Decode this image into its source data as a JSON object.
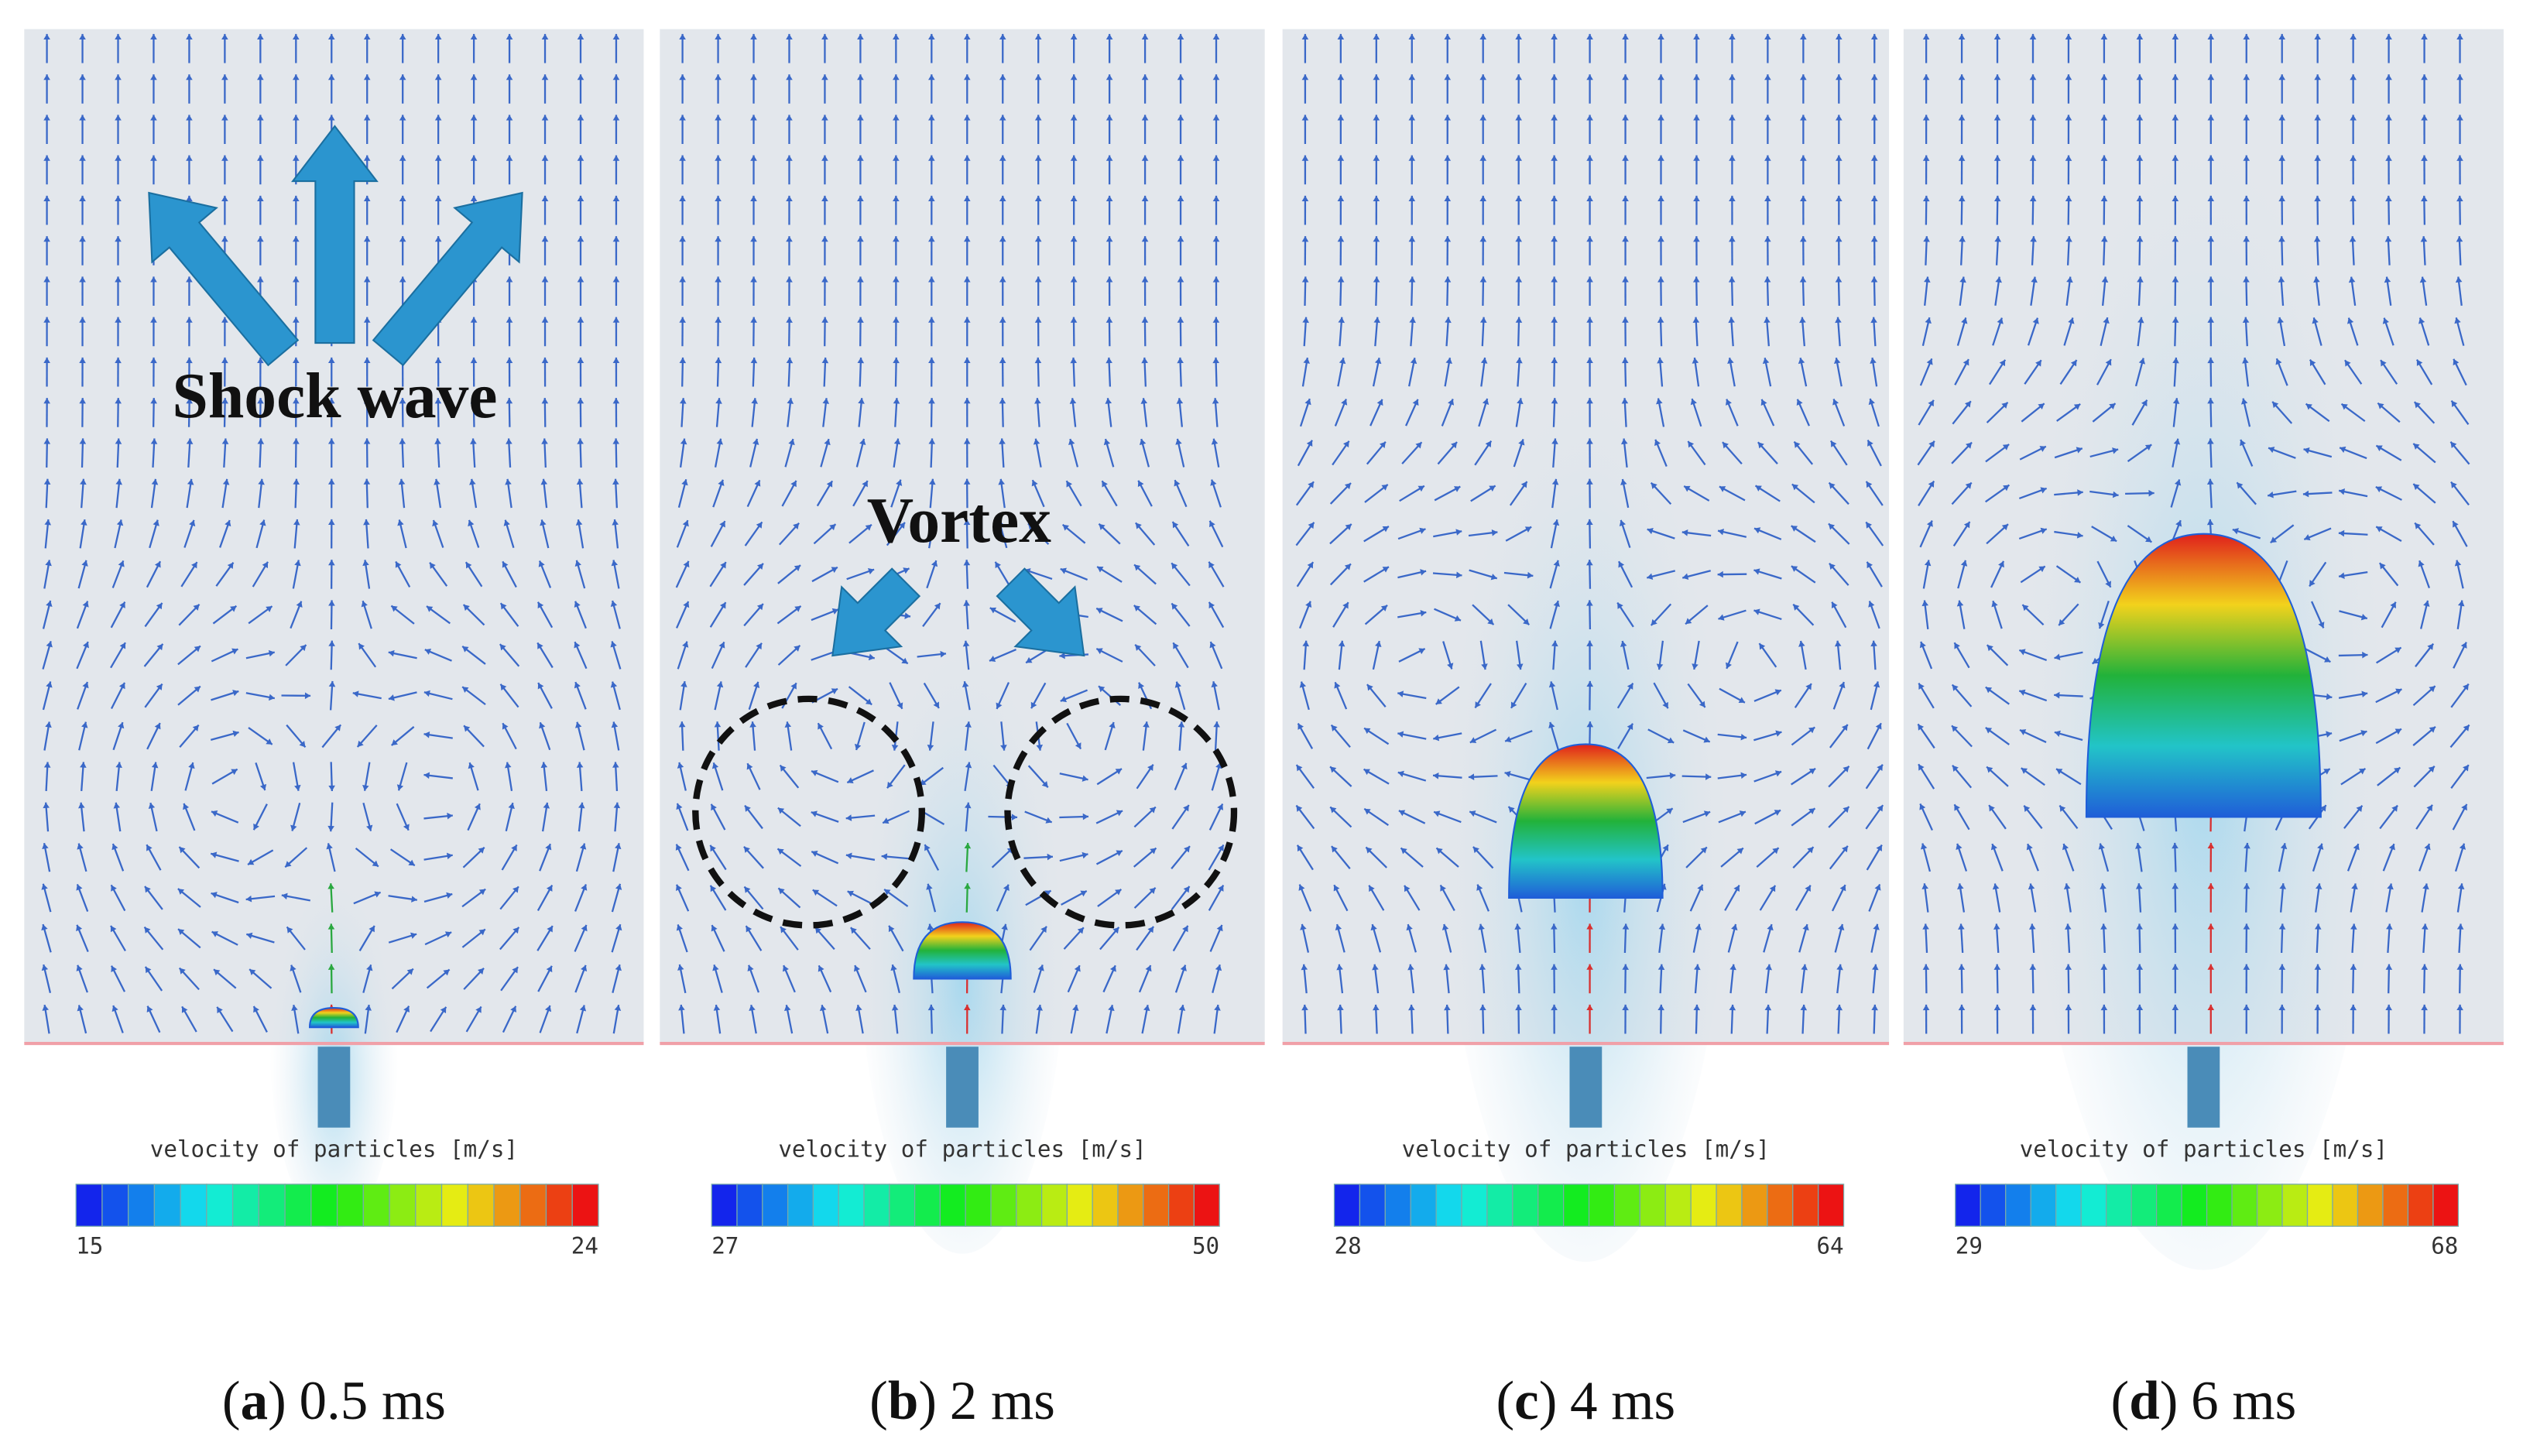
{
  "annotations": {
    "shock_wave": "Shock wave",
    "vortex": "Vortex"
  },
  "panels": [
    {
      "caption": [
        "(",
        "a",
        ")",
        "0.5 ms"
      ],
      "colorbar": {
        "title": "velocity of particles [m/s]",
        "min": 15,
        "max": 24
      }
    },
    {
      "caption": [
        "(",
        "b",
        ")",
        "2 ms"
      ],
      "colorbar": {
        "title": "velocity of particles [m/s]",
        "min": 27,
        "max": 50
      }
    },
    {
      "caption": [
        "(",
        "c",
        ")",
        "4 ms"
      ],
      "colorbar": {
        "title": "velocity of particles [m/s]",
        "min": 28,
        "max": 64
      }
    },
    {
      "caption": [
        "(",
        "d",
        ")",
        "6 ms"
      ],
      "colorbar": {
        "title": "velocity of particles [m/s]",
        "min": 29,
        "max": 68
      }
    }
  ]
}
